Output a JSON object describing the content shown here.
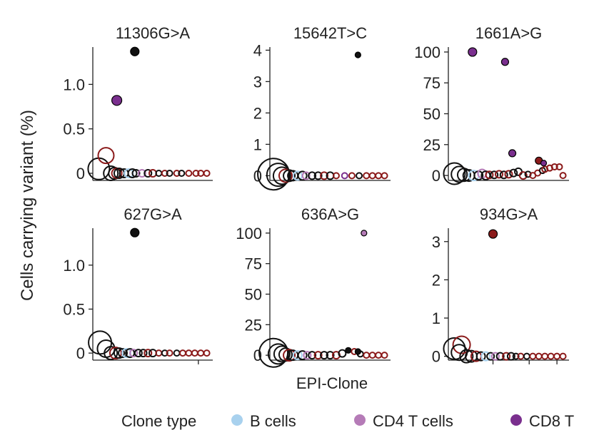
{
  "figure": {
    "ylabel": "Cells carrying variant (%)",
    "xlabel": "EPI-Clone"
  },
  "legend": {
    "title": "Clone type",
    "items": [
      {
        "label": "B cells",
        "color": "#a8d1ee"
      },
      {
        "label": "CD4 T cells",
        "color": "#b57bb7"
      },
      {
        "label": "CD8 T",
        "color": "#7a2f8e"
      }
    ]
  },
  "colors": {
    "black": "#111111",
    "red": "#8b1a1a",
    "blue": "#a8d1ee",
    "pink": "#b57bb7",
    "purple": "#7a2f8e"
  },
  "chart_data": [
    {
      "type": "scatter",
      "title": "11306G>A",
      "ylim": [
        -0.08,
        1.42
      ],
      "yticks": [
        0,
        0.5,
        1.0
      ],
      "yticklabels": [
        "0",
        "0.5",
        "1.0"
      ],
      "xticks": [],
      "x": [
        5,
        11,
        15,
        18,
        20,
        22,
        26,
        30,
        33,
        36,
        41,
        46,
        50,
        55,
        60,
        64,
        70,
        74,
        80,
        86,
        90,
        95,
        20,
        35
      ],
      "y": [
        0.05,
        0.2,
        0,
        0,
        0,
        0,
        0,
        0,
        0,
        0,
        0,
        0,
        0,
        0,
        0,
        0,
        0,
        0,
        0,
        0,
        0,
        0,
        0.82,
        1.37
      ],
      "size": [
        15,
        11,
        10,
        8,
        7,
        7,
        6,
        6,
        6,
        5,
        5,
        5,
        5,
        4,
        4,
        4,
        4,
        4,
        4,
        4,
        4,
        4,
        7,
        6
      ],
      "color": [
        "black",
        "red",
        "black",
        "black",
        "red",
        "black",
        "black",
        "blue",
        "black",
        "black",
        "pink",
        "black",
        "red",
        "black",
        "red",
        "black",
        "red",
        "black",
        "red",
        "red",
        "red",
        "red",
        "purple",
        "black"
      ],
      "filled": [
        false,
        false,
        false,
        false,
        false,
        false,
        false,
        false,
        false,
        false,
        false,
        false,
        false,
        false,
        false,
        false,
        false,
        false,
        false,
        false,
        false,
        false,
        true,
        true
      ]
    },
    {
      "type": "scatter",
      "title": "15642T>C",
      "ylim": [
        -0.15,
        4.1
      ],
      "yticks": [
        0,
        1,
        2,
        3,
        4
      ],
      "yticklabels": [
        "0",
        "1",
        "2",
        "3",
        "4"
      ],
      "xticks": [],
      "x": [
        3,
        7,
        10,
        13,
        16,
        19,
        23,
        27,
        30,
        35,
        40,
        45,
        50,
        55,
        62,
        68,
        74,
        80,
        85,
        90,
        95,
        73
      ],
      "y": [
        0.05,
        0.03,
        0,
        0,
        0,
        0,
        0,
        0,
        0,
        0,
        0,
        0,
        0,
        0,
        0,
        0,
        0,
        0,
        0,
        0,
        0,
        3.85
      ],
      "size": [
        22,
        16,
        12,
        9,
        8,
        7,
        6,
        6,
        5,
        5,
        5,
        5,
        5,
        4,
        4,
        4,
        4,
        4,
        4,
        4,
        4,
        4
      ],
      "color": [
        "black",
        "black",
        "black",
        "red",
        "black",
        "black",
        "blue",
        "black",
        "pink",
        "black",
        "black",
        "red",
        "black",
        "red",
        "purple",
        "red",
        "black",
        "red",
        "red",
        "red",
        "red",
        "black"
      ],
      "filled": [
        false,
        false,
        false,
        false,
        false,
        false,
        false,
        false,
        false,
        false,
        false,
        false,
        false,
        false,
        false,
        false,
        false,
        false,
        false,
        false,
        false,
        true
      ]
    },
    {
      "type": "scatter",
      "title": "1661A>G",
      "ylim": [
        -4,
        104
      ],
      "yticks": [
        0,
        25,
        50,
        75,
        100
      ],
      "yticklabels": [
        "0",
        "25",
        "50",
        "75",
        "100"
      ],
      "xticks": [],
      "x": [
        5,
        9,
        13,
        17,
        21,
        25,
        28,
        31,
        34,
        38,
        42,
        46,
        50,
        54,
        58,
        62,
        66,
        70,
        74,
        78,
        80,
        84,
        88,
        92,
        95,
        20,
        47,
        53,
        75,
        79
      ],
      "y": [
        1.5,
        1,
        0.5,
        0,
        0,
        0,
        1.5,
        0,
        0.5,
        0.5,
        1,
        0.5,
        1,
        2,
        3,
        0,
        1,
        0,
        2,
        4,
        5,
        6,
        7,
        7,
        0,
        100,
        92,
        18,
        12,
        10
      ],
      "size": [
        15,
        11,
        9,
        8,
        7,
        6,
        6,
        6,
        5,
        5,
        5,
        5,
        5,
        5,
        5,
        5,
        4,
        4,
        4,
        4,
        4,
        4,
        4,
        4,
        4,
        6,
        5,
        5,
        5,
        4
      ],
      "color": [
        "black",
        "black",
        "black",
        "black",
        "blue",
        "black",
        "pink",
        "black",
        "red",
        "black",
        "red",
        "black",
        "red",
        "black",
        "black",
        "red",
        "black",
        "red",
        "red",
        "black",
        "red",
        "red",
        "red",
        "red",
        "red",
        "purple",
        "purple",
        "purple",
        "red",
        "purple"
      ],
      "filled": [
        false,
        false,
        false,
        false,
        false,
        false,
        false,
        false,
        false,
        false,
        false,
        false,
        false,
        false,
        false,
        false,
        false,
        false,
        false,
        false,
        false,
        false,
        false,
        false,
        false,
        true,
        true,
        true,
        true,
        true
      ]
    },
    {
      "type": "scatter",
      "title": "627G>A",
      "ylim": [
        -0.08,
        1.42
      ],
      "yticks": [
        0,
        0.5,
        1.0
      ],
      "yticklabels": [
        "0",
        "0.5",
        "1.0"
      ],
      "xticks": [
        88
      ],
      "x": [
        6,
        11,
        15,
        19,
        22,
        25,
        28,
        31,
        34,
        38,
        42,
        46,
        50,
        55,
        60,
        64,
        70,
        75,
        80,
        85,
        90,
        95,
        35
      ],
      "y": [
        0.12,
        0.05,
        0,
        0,
        0,
        0,
        0,
        0,
        0,
        0,
        0,
        0,
        0,
        0,
        0,
        0,
        0,
        0,
        0,
        0,
        0,
        0,
        1.37
      ],
      "size": [
        16,
        12,
        9,
        8,
        7,
        6,
        6,
        6,
        5,
        5,
        5,
        5,
        5,
        4,
        4,
        4,
        4,
        4,
        4,
        4,
        4,
        4,
        6
      ],
      "color": [
        "black",
        "black",
        "black",
        "red",
        "black",
        "black",
        "blue",
        "black",
        "pink",
        "black",
        "black",
        "red",
        "black",
        "red",
        "black",
        "red",
        "black",
        "red",
        "red",
        "red",
        "red",
        "red",
        "black"
      ],
      "filled": [
        false,
        false,
        false,
        false,
        false,
        false,
        false,
        false,
        false,
        false,
        false,
        false,
        false,
        false,
        false,
        false,
        false,
        false,
        false,
        false,
        false,
        false,
        true
      ]
    },
    {
      "type": "scatter",
      "title": "636A>G",
      "ylim": [
        -4,
        104
      ],
      "yticks": [
        0,
        25,
        50,
        75,
        100
      ],
      "yticklabels": [
        "0",
        "25",
        "50",
        "75",
        "100"
      ],
      "xticks": [],
      "x": [
        3,
        7,
        10,
        13,
        16,
        19,
        23,
        27,
        31,
        35,
        40,
        45,
        50,
        55,
        60,
        65,
        70,
        75,
        80,
        85,
        90,
        95,
        73,
        78
      ],
      "y": [
        2,
        1,
        1,
        0.5,
        0,
        0,
        0,
        0,
        0,
        0,
        0,
        0,
        0,
        0,
        1.5,
        4,
        3,
        1,
        0,
        0,
        0,
        0,
        3,
        100
      ],
      "size": [
        20,
        14,
        11,
        9,
        8,
        7,
        6,
        6,
        5,
        5,
        5,
        5,
        5,
        5,
        5,
        4,
        4,
        4,
        4,
        4,
        4,
        4,
        4,
        4
      ],
      "color": [
        "black",
        "black",
        "black",
        "black",
        "red",
        "black",
        "blue",
        "black",
        "pink",
        "black",
        "red",
        "black",
        "black",
        "red",
        "black",
        "black",
        "red",
        "black",
        "red",
        "red",
        "red",
        "red",
        "black",
        "pink"
      ],
      "filled": [
        false,
        false,
        false,
        false,
        false,
        false,
        false,
        false,
        false,
        false,
        false,
        false,
        false,
        false,
        false,
        true,
        false,
        false,
        false,
        false,
        false,
        false,
        true,
        true
      ]
    },
    {
      "type": "scatter",
      "title": "934G>A",
      "ylim": [
        -0.1,
        3.35
      ],
      "yticks": [
        0,
        1,
        2,
        3
      ],
      "yticklabels": [
        "0",
        "1",
        "2",
        "3"
      ],
      "xticks": [
        37,
        67,
        90
      ],
      "x": [
        5,
        9,
        11,
        15,
        19,
        23,
        27,
        31,
        35,
        39,
        43,
        48,
        52,
        56,
        60,
        65,
        70,
        75,
        80,
        85,
        90,
        95,
        37
      ],
      "y": [
        0.2,
        0.1,
        0.3,
        0,
        0,
        0,
        0,
        0,
        0,
        0,
        0,
        0,
        0,
        0,
        0,
        0,
        0,
        0,
        0,
        0,
        0,
        0,
        3.2
      ],
      "size": [
        15,
        11,
        12,
        9,
        8,
        7,
        6,
        6,
        5,
        5,
        5,
        5,
        5,
        4,
        4,
        4,
        4,
        4,
        4,
        4,
        4,
        4,
        6
      ],
      "color": [
        "black",
        "black",
        "red",
        "black",
        "black",
        "red",
        "black",
        "blue",
        "black",
        "pink",
        "black",
        "red",
        "black",
        "black",
        "red",
        "black",
        "red",
        "red",
        "red",
        "red",
        "red",
        "red",
        "red"
      ],
      "filled": [
        false,
        false,
        false,
        false,
        false,
        false,
        false,
        false,
        false,
        false,
        false,
        false,
        false,
        false,
        false,
        false,
        false,
        false,
        false,
        false,
        false,
        false,
        true
      ]
    }
  ]
}
